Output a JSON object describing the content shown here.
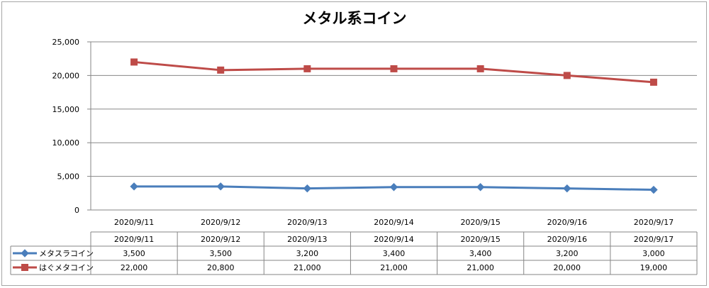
{
  "chart_data": {
    "type": "line",
    "title": "メタル系コイン",
    "xlabel": "",
    "ylabel": "",
    "categories": [
      "2020/9/11",
      "2020/9/12",
      "2020/9/13",
      "2020/9/14",
      "2020/9/15",
      "2020/9/16",
      "2020/9/17"
    ],
    "y_ticks": [
      "0",
      "5,000",
      "10,000",
      "15,000",
      "20,000",
      "25,000"
    ],
    "ylim": [
      0,
      25000
    ],
    "grid": true,
    "legend": "data-table-left",
    "series": [
      {
        "name": "メタスラコイン",
        "color": "#4a7ebb",
        "marker": "diamond",
        "values": [
          3500,
          3500,
          3200,
          3400,
          3400,
          3200,
          3000
        ],
        "labels": [
          "3,500",
          "3,500",
          "3,200",
          "3,400",
          "3,400",
          "3,200",
          "3,000"
        ]
      },
      {
        "name": "はぐメタコイン",
        "color": "#be4b48",
        "marker": "square",
        "values": [
          22000,
          20800,
          21000,
          21000,
          21000,
          20000,
          19000
        ],
        "labels": [
          "22,000",
          "20,800",
          "21,000",
          "21,000",
          "21,000",
          "20,000",
          "19,000"
        ]
      }
    ]
  }
}
